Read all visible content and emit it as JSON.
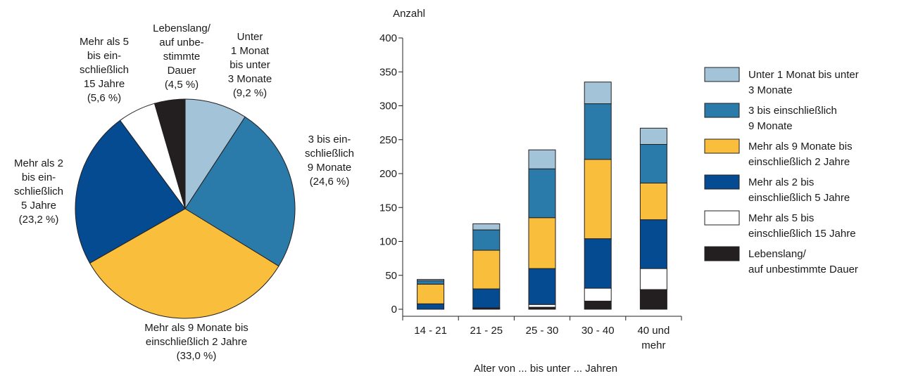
{
  "chart_data": [
    {
      "type": "pie",
      "slices": [
        {
          "label_lines": [
            "Unter",
            "1 Monat",
            "bis unter",
            "3 Monate"
          ],
          "pct_text": "(9,2 %)",
          "value": 9.2,
          "color": "#a3c3d8"
        },
        {
          "label_lines": [
            "3 bis ein-",
            "schließlich",
            "9 Monate"
          ],
          "pct_text": "(24,6 %)",
          "value": 24.6,
          "color": "#2b7baa"
        },
        {
          "label_lines": [
            "Mehr als 9 Monate bis",
            "einschließlich 2 Jahre"
          ],
          "pct_text": "(33,0 %)",
          "value": 33.0,
          "color": "#f8be3c"
        },
        {
          "label_lines": [
            "Mehr als 2",
            "bis ein-",
            "schließlich",
            "5 Jahre"
          ],
          "pct_text": "(23,2 %)",
          "value": 23.2,
          "color": "#044b91"
        },
        {
          "label_lines": [
            "Mehr als 5",
            "bis ein-",
            "schließlich",
            "15 Jahre"
          ],
          "pct_text": "(5,6 %)",
          "value": 5.6,
          "color": "#ffffff"
        },
        {
          "label_lines": [
            "Lebenslang/",
            "auf unbe-",
            "stimmte",
            "Dauer"
          ],
          "pct_text": "(4,5 %)",
          "value": 4.5,
          "color": "#231f20"
        }
      ]
    },
    {
      "type": "bar",
      "stacked": true,
      "ylabel": "Anzahl",
      "xlabel": "Alter von ... bis unter ... Jahren",
      "ylim": [
        0,
        400
      ],
      "yticks": [
        "0",
        "50",
        "100",
        "150",
        "200",
        "250",
        "300",
        "350",
        "400"
      ],
      "categories": [
        [
          "14 - 21"
        ],
        [
          "21 - 25"
        ],
        [
          "25 - 30"
        ],
        [
          "30 - 40"
        ],
        [
          "40 und",
          "mehr"
        ]
      ],
      "series": [
        {
          "name_lines": [
            "Lebenslang/",
            "auf unbestimmte Dauer"
          ],
          "color": "#231f20",
          "values": [
            0,
            1,
            3,
            12,
            29
          ]
        },
        {
          "name_lines": [
            "Mehr als 5 bis",
            "einschließlich 15 Jahre"
          ],
          "color": "#ffffff",
          "values": [
            0,
            1,
            4,
            19,
            31
          ]
        },
        {
          "name_lines": [
            "Mehr als 2 bis",
            "einschließlich 5 Jahre"
          ],
          "color": "#044b91",
          "values": [
            8,
            28,
            53,
            73,
            72
          ]
        },
        {
          "name_lines": [
            "Mehr als 9 Monate bis",
            "einschließlich 2 Jahre"
          ],
          "color": "#f8be3c",
          "values": [
            29,
            57,
            75,
            117,
            54
          ]
        },
        {
          "name_lines": [
            "3 bis einschließlich",
            "9 Monate"
          ],
          "color": "#2b7baa",
          "values": [
            5,
            30,
            72,
            82,
            57
          ]
        },
        {
          "name_lines": [
            "Unter 1 Monat bis unter",
            "3 Monate"
          ],
          "color": "#a3c3d8",
          "values": [
            2,
            9,
            28,
            32,
            24
          ]
        }
      ],
      "legend_position": "right"
    }
  ]
}
